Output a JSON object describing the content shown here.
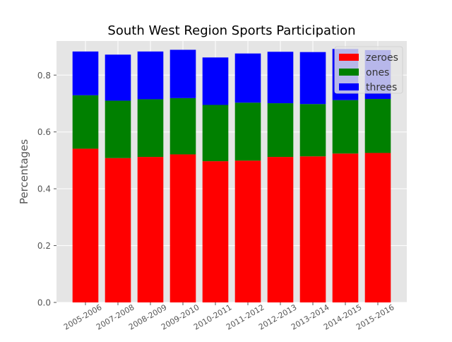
{
  "chart_data": {
    "type": "bar",
    "stacked": true,
    "title": "South West Region Sports Participation",
    "xlabel": "",
    "ylabel": "Percentages",
    "ylim": [
      0,
      0.92
    ],
    "yticks": [
      0.0,
      0.2,
      0.4,
      0.6,
      0.8
    ],
    "ytick_labels": [
      "0.0",
      "0.2",
      "0.4",
      "0.6",
      "0.8"
    ],
    "categories": [
      "2005-2006",
      "2007-2008",
      "2008-2009",
      "2009-2010",
      "2010-2011",
      "2011-2012",
      "2012-2013",
      "2013-2014",
      "2014-2015",
      "2015-2016"
    ],
    "series": [
      {
        "name": "zeroes",
        "color": "#ff0000",
        "values": [
          0.541,
          0.508,
          0.512,
          0.521,
          0.497,
          0.499,
          0.512,
          0.514,
          0.524,
          0.526
        ]
      },
      {
        "name": "ones",
        "color": "#008000",
        "values": [
          0.188,
          0.202,
          0.203,
          0.198,
          0.198,
          0.204,
          0.189,
          0.184,
          0.188,
          0.19
        ]
      },
      {
        "name": "threes",
        "color": "#0000ff",
        "values": [
          0.154,
          0.162,
          0.168,
          0.17,
          0.167,
          0.173,
          0.181,
          0.183,
          0.18,
          0.172
        ]
      }
    ],
    "grid": true,
    "legend_position": "top-right",
    "style": "ggplot"
  }
}
